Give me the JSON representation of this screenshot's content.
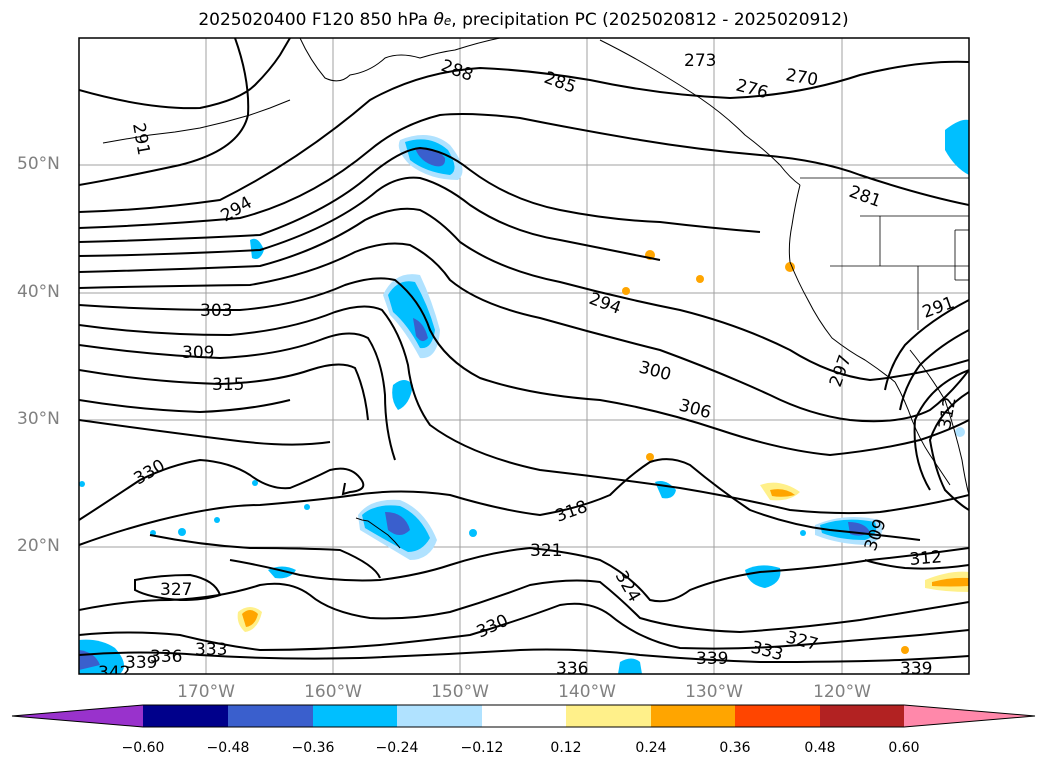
{
  "title": {
    "prefix": "2025020400 F120 850 hPa ",
    "theta": "θ",
    "theta_sub": "e",
    "suffix": ", precipitation PC (2025020812 - 2025020912)"
  },
  "map": {
    "lat_labels": [
      "50°N",
      "40°N",
      "30°N",
      "20°N"
    ],
    "lon_labels": [
      "170°W",
      "160°W",
      "150°W",
      "140°W",
      "130°W",
      "120°W"
    ],
    "gridline_color": "#a0a0a0",
    "contour_color": "#000000",
    "contour_labels": [
      "288",
      "285",
      "273",
      "276",
      "270",
      "291",
      "294",
      "281",
      "291",
      "294",
      "303",
      "309",
      "315",
      "300",
      "306",
      "297",
      "312",
      "330",
      "318",
      "321",
      "324",
      "309",
      "312",
      "327",
      "330",
      "333",
      "336",
      "339",
      "336",
      "339",
      "327",
      "333",
      "339",
      "342"
    ]
  },
  "colorbar": {
    "ticks": [
      "−0.60",
      "−0.48",
      "−0.36",
      "−0.24",
      "−0.12",
      "0.12",
      "0.24",
      "0.36",
      "0.48",
      "0.60"
    ],
    "colors": [
      "#9932cc",
      "#00008b",
      "#3a5fcd",
      "#00bfff",
      "#b0e2ff",
      "#ffffff",
      "#fff08a",
      "#ffa500",
      "#ff4500",
      "#b22222",
      "#ff88aa"
    ]
  }
}
